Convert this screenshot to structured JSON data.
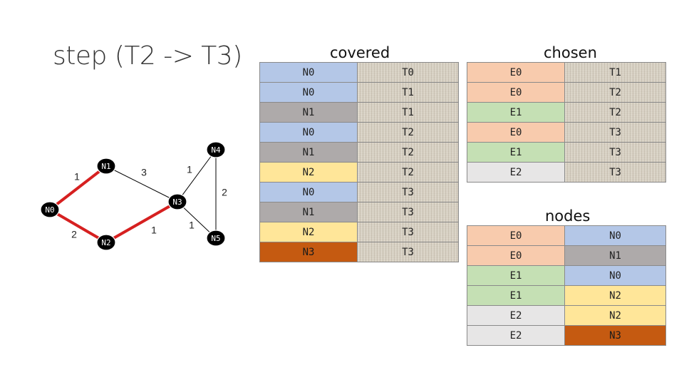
{
  "title": "step (T2 -> T3)",
  "headings": {
    "covered": "covered",
    "chosen": "chosen",
    "nodes": "nodes"
  },
  "colors": {
    "N0": "#b4c7e7",
    "N1": "#aeaaaa",
    "N2": "#ffe699",
    "N3": "#c55a11",
    "E0": "#f8cbad",
    "E1": "#c5e0b4",
    "E2": "#e7e6e6",
    "highlight_edge": "#d62020",
    "edge": "#000000",
    "node_fill": "#000000"
  },
  "graph": {
    "nodes": [
      {
        "id": "N0",
        "label": "N0"
      },
      {
        "id": "N1",
        "label": "N1"
      },
      {
        "id": "N2",
        "label": "N2"
      },
      {
        "id": "N3",
        "label": "N3"
      },
      {
        "id": "N4",
        "label": "N4"
      },
      {
        "id": "N5",
        "label": "N5"
      }
    ],
    "edges": [
      {
        "from": "N0",
        "to": "N1",
        "weight": "1",
        "highlight": true
      },
      {
        "from": "N0",
        "to": "N2",
        "weight": "2",
        "highlight": true
      },
      {
        "from": "N1",
        "to": "N3",
        "weight": "3",
        "highlight": false
      },
      {
        "from": "N2",
        "to": "N3",
        "weight": "1",
        "highlight": true
      },
      {
        "from": "N3",
        "to": "N4",
        "weight": "1",
        "highlight": false
      },
      {
        "from": "N3",
        "to": "N5",
        "weight": "1",
        "highlight": false
      },
      {
        "from": "N4",
        "to": "N5",
        "weight": "2",
        "highlight": false
      }
    ]
  },
  "covered": [
    [
      "N0",
      "T0"
    ],
    [
      "N0",
      "T1"
    ],
    [
      "N1",
      "T1"
    ],
    [
      "N0",
      "T2"
    ],
    [
      "N1",
      "T2"
    ],
    [
      "N2",
      "T2"
    ],
    [
      "N0",
      "T3"
    ],
    [
      "N1",
      "T3"
    ],
    [
      "N2",
      "T3"
    ],
    [
      "N3",
      "T3"
    ]
  ],
  "chosen": [
    [
      "E0",
      "T1"
    ],
    [
      "E0",
      "T2"
    ],
    [
      "E1",
      "T2"
    ],
    [
      "E0",
      "T3"
    ],
    [
      "E1",
      "T3"
    ],
    [
      "E2",
      "T3"
    ]
  ],
  "nodes_table": [
    [
      "E0",
      "N0"
    ],
    [
      "E0",
      "N1"
    ],
    [
      "E1",
      "N0"
    ],
    [
      "E1",
      "N2"
    ],
    [
      "E2",
      "N2"
    ],
    [
      "E2",
      "N3"
    ]
  ]
}
